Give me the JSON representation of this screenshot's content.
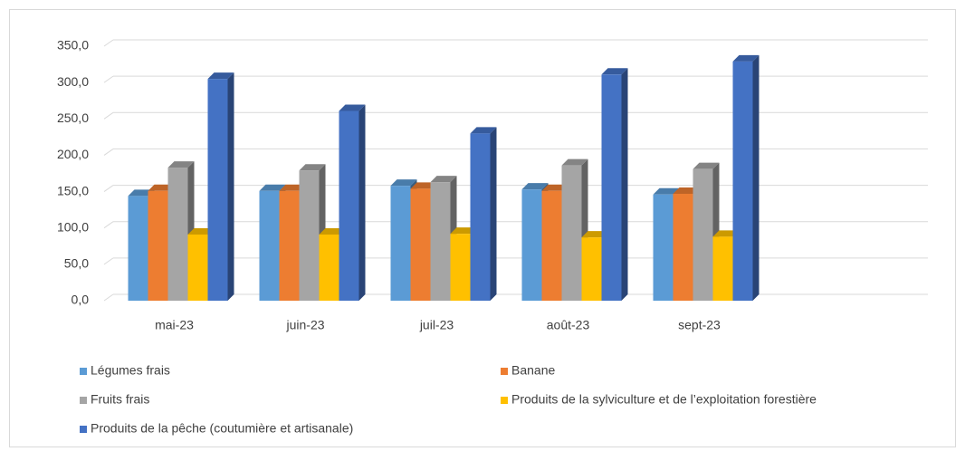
{
  "chart_data": {
    "type": "bar3d",
    "categories": [
      "mai-23",
      "juin-23",
      "juil-23",
      "août-23",
      "sept-23"
    ],
    "series": [
      {
        "name": "Légumes frais",
        "color": "#5b9bd5",
        "values": [
          144,
          151,
          158,
          153,
          146
        ]
      },
      {
        "name": "Banane",
        "color": "#ed7d31",
        "values": [
          151,
          151,
          154,
          151,
          147
        ]
      },
      {
        "name": "Fruits frais",
        "color": "#a5a5a5",
        "values": [
          183,
          179,
          163,
          186,
          181
        ]
      },
      {
        "name": "Produits de la sylviculture et de l’exploitation forestière",
        "color": "#ffc000",
        "values": [
          91,
          91,
          92,
          87,
          88
        ]
      },
      {
        "name": "Produits de la pêche (coutumière et artisanale)",
        "color": "#4472c4",
        "values": [
          305,
          261,
          230,
          311,
          329
        ]
      }
    ],
    "ylim": [
      0,
      350
    ],
    "yticks": [
      {
        "value": 0,
        "label": "0,0"
      },
      {
        "value": 50,
        "label": "50,0"
      },
      {
        "value": 100,
        "label": "100,0"
      },
      {
        "value": 150,
        "label": "150,0"
      },
      {
        "value": 200,
        "label": "200,0"
      },
      {
        "value": 250,
        "label": "250,0"
      },
      {
        "value": 300,
        "label": "300,0"
      },
      {
        "value": 350,
        "label": "350,0"
      }
    ],
    "grid": true
  }
}
